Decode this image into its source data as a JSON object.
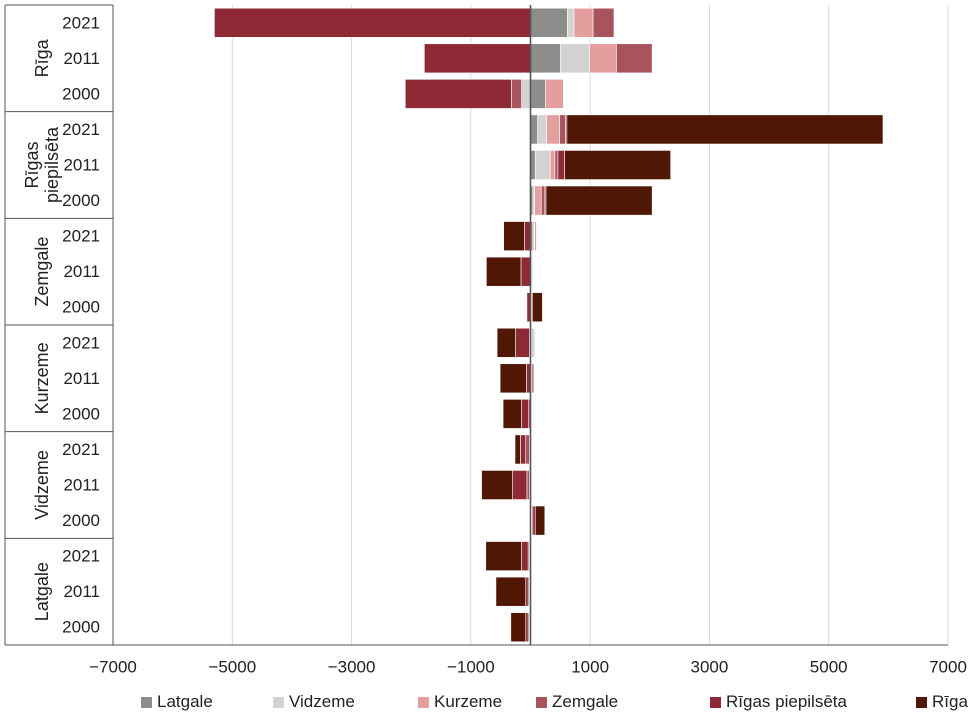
{
  "colors": {
    "Latgale": "#8c8c8a",
    "Vidzeme": "#d3d3d3",
    "Kurzeme": "#e59e9e",
    "Zemgale": "#a8545d",
    "Rīgas piepilsēta": "#8e2a36",
    "Rīga": "#501804",
    "grid": "#d9d9d9",
    "axis": "#555555",
    "text": "#222222"
  },
  "chart_data": {
    "type": "bar",
    "orientation": "horizontal-stacked-diverging",
    "title": "",
    "xlabel": "",
    "ylabel": "",
    "xlim": [
      -7000,
      7000
    ],
    "x_ticks": [
      -7000,
      -5000,
      -3000,
      -1000,
      1000,
      3000,
      5000,
      7000
    ],
    "x_tick_labels": [
      "−7000",
      "−5000",
      "−3000",
      "−1000",
      "1000",
      "3000",
      "5000",
      "7000"
    ],
    "grid": "vertical",
    "legend_position": "bottom",
    "series_order": [
      "Latgale",
      "Vidzeme",
      "Kurzeme",
      "Zemgale",
      "Rīgas piepilsēta",
      "Rīga"
    ],
    "groups": [
      {
        "name": "Rīga",
        "label_lines": [
          "Rīga"
        ],
        "rows": [
          {
            "year": "2021",
            "values": {
              "Latgale": 620,
              "Vidzeme": 110,
              "Kurzeme": 320,
              "Zemgale": 350,
              "Rīgas piepilsēta": -5300,
              "Rīga": 0
            }
          },
          {
            "year": "2011",
            "values": {
              "Latgale": 500,
              "Vidzeme": 490,
              "Kurzeme": 450,
              "Zemgale": 600,
              "Rīgas piepilsēta": -1780,
              "Rīga": 0
            }
          },
          {
            "year": "2000",
            "values": {
              "Latgale": 250,
              "Vidzeme": -150,
              "Kurzeme": 300,
              "Zemgale": -170,
              "Rīgas piepilsēta": -1780,
              "Rīga": 0
            }
          }
        ]
      },
      {
        "name": "Rīgas piepilsēta",
        "label_lines": [
          "Rīgas",
          "piepilsēta"
        ],
        "rows": [
          {
            "year": "2021",
            "values": {
              "Latgale": 120,
              "Vidzeme": 150,
              "Kurzeme": 220,
              "Zemgale": 100,
              "Rīgas piepilsēta": 20,
              "Rīga": 5300
            }
          },
          {
            "year": "2011",
            "values": {
              "Latgale": 80,
              "Vidzeme": 250,
              "Kurzeme": 80,
              "Zemgale": 50,
              "Rīgas piepilsēta": 110,
              "Rīga": 1780
            }
          },
          {
            "year": "2000",
            "values": {
              "Latgale": 40,
              "Vidzeme": 30,
              "Kurzeme": 110,
              "Zemgale": 60,
              "Rīgas piepilsēta": 20,
              "Rīga": 1780
            }
          }
        ]
      },
      {
        "name": "Zemgale",
        "label_lines": [
          "Zemgale"
        ],
        "rows": [
          {
            "year": "2021",
            "values": {
              "Latgale": 40,
              "Vidzeme": 30,
              "Kurzeme": 30,
              "Zemgale": 0,
              "Rīgas piepilsēta": -100,
              "Rīga": -350
            }
          },
          {
            "year": "2011",
            "values": {
              "Latgale": 15,
              "Vidzeme": 20,
              "Kurzeme": 0,
              "Zemgale": 0,
              "Rīgas piepilsēta": -160,
              "Rīga": -580
            }
          },
          {
            "year": "2000",
            "values": {
              "Latgale": 10,
              "Vidzeme": 10,
              "Kurzeme": 10,
              "Zemgale": 0,
              "Rīgas piepilsēta": -60,
              "Rīga": 170
            }
          }
        ]
      },
      {
        "name": "Kurzeme",
        "label_lines": [
          "Kurzeme"
        ],
        "rows": [
          {
            "year": "2021",
            "values": {
              "Latgale": 20,
              "Vidzeme": 50,
              "Kurzeme": 0,
              "Zemgale": -20,
              "Rīgas piepilsēta": -230,
              "Rīga": -310
            }
          },
          {
            "year": "2011",
            "values": {
              "Latgale": 15,
              "Vidzeme": 10,
              "Kurzeme": 0,
              "Zemgale": 30,
              "Rīgas piepilsēta": -70,
              "Rīga": -440
            }
          },
          {
            "year": "2000",
            "values": {
              "Latgale": 10,
              "Vidzeme": 10,
              "Kurzeme": 0,
              "Zemgale": -30,
              "Rīgas piepilsēta": -120,
              "Rīga": -310
            }
          }
        ]
      },
      {
        "name": "Vidzeme",
        "label_lines": [
          "Vidzeme"
        ],
        "rows": [
          {
            "year": "2021",
            "values": {
              "Latgale": 10,
              "Vidzeme": 0,
              "Kurzeme": -20,
              "Zemgale": -60,
              "Rīgas piepilsēta": -90,
              "Rīga": -90
            }
          },
          {
            "year": "2011",
            "values": {
              "Latgale": 15,
              "Vidzeme": 0,
              "Kurzeme": -20,
              "Zemgale": -40,
              "Rīgas piepilsēta": -240,
              "Rīga": -520
            }
          },
          {
            "year": "2000",
            "values": {
              "Latgale": 10,
              "Vidzeme": 0,
              "Kurzeme": 10,
              "Zemgale": 20,
              "Rīgas piepilsēta": 40,
              "Rīga": 160
            }
          }
        ]
      },
      {
        "name": "Latgale",
        "label_lines": [
          "Latgale"
        ],
        "rows": [
          {
            "year": "2021",
            "values": {
              "Latgale": 0,
              "Vidzeme": -10,
              "Kurzeme": -10,
              "Zemgale": -20,
              "Rīgas piepilsēta": -110,
              "Rīga": -600
            }
          },
          {
            "year": "2011",
            "values": {
              "Latgale": 0,
              "Vidzeme": -10,
              "Kurzeme": -10,
              "Zemgale": -20,
              "Rīgas piepilsēta": -40,
              "Rīga": -500
            }
          },
          {
            "year": "2000",
            "values": {
              "Latgale": 0,
              "Vidzeme": -10,
              "Kurzeme": -10,
              "Zemgale": -20,
              "Rīgas piepilsēta": -40,
              "Rīga": -250
            }
          }
        ]
      }
    ]
  }
}
